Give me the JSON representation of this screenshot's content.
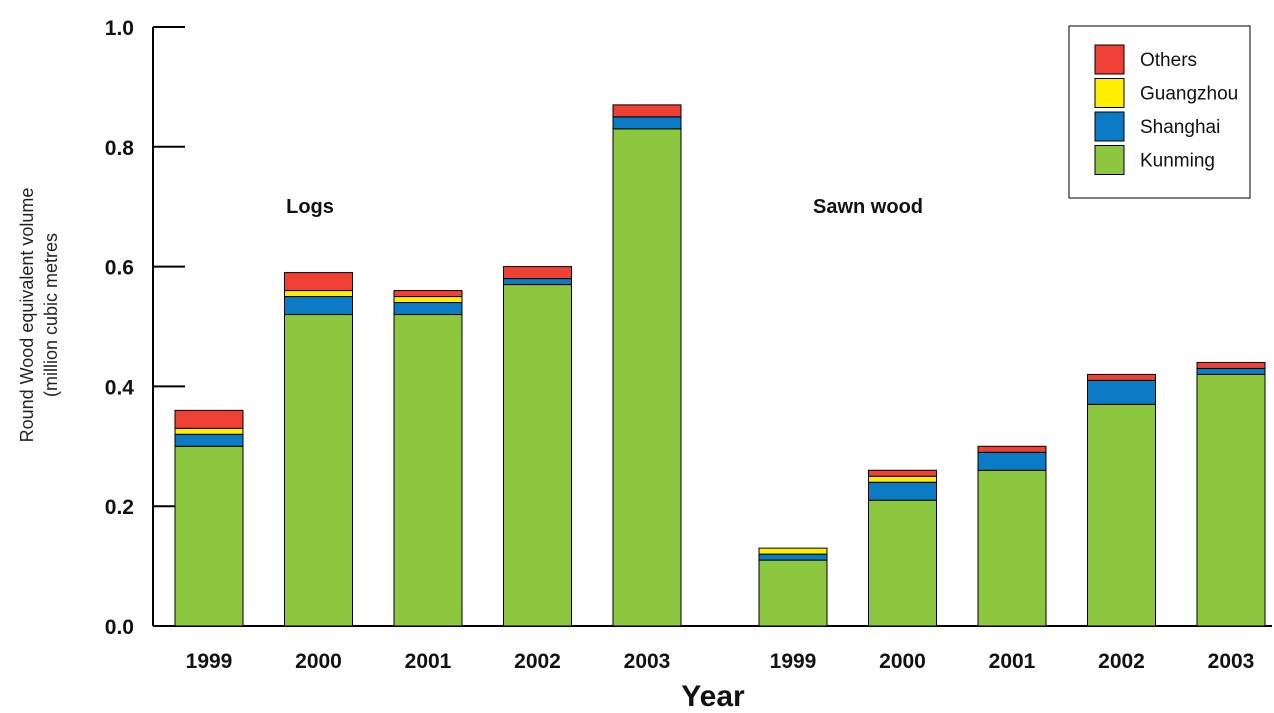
{
  "chart_data": {
    "type": "bar",
    "stacked": true,
    "xlabel": "Year",
    "ylabel_lines": [
      "Round Wood equivalent volume",
      "(million cubic metres"
    ],
    "ylim": [
      0,
      1.0
    ],
    "yticks": [
      "0.0",
      "0.2",
      "0.4",
      "0.6",
      "0.8",
      "1.0"
    ],
    "ytick_values": [
      0,
      0.2,
      0.4,
      0.6,
      0.8,
      1.0
    ],
    "grid": false,
    "legend_position": "top-right",
    "groups": [
      {
        "label": "Logs",
        "categories": [
          "1999",
          "2000",
          "2001",
          "2002",
          "2003"
        ],
        "series": [
          {
            "name": "Kunming",
            "values": [
              0.3,
              0.52,
              0.52,
              0.57,
              0.83
            ]
          },
          {
            "name": "Shanghai",
            "values": [
              0.02,
              0.03,
              0.02,
              0.01,
              0.02
            ]
          },
          {
            "name": "Guangzhou",
            "values": [
              0.01,
              0.01,
              0.01,
              0.0,
              0.0
            ]
          },
          {
            "name": "Others",
            "values": [
              0.03,
              0.03,
              0.01,
              0.02,
              0.02
            ]
          }
        ]
      },
      {
        "label": "Sawn wood",
        "categories": [
          "1999",
          "2000",
          "2001",
          "2002",
          "2003"
        ],
        "series": [
          {
            "name": "Kunming",
            "values": [
              0.11,
              0.21,
              0.26,
              0.37,
              0.42
            ]
          },
          {
            "name": "Shanghai",
            "values": [
              0.01,
              0.03,
              0.03,
              0.04,
              0.01
            ]
          },
          {
            "name": "Guangzhou",
            "values": [
              0.01,
              0.01,
              0.0,
              0.0,
              0.0
            ]
          },
          {
            "name": "Others",
            "values": [
              0.0,
              0.01,
              0.01,
              0.01,
              0.01
            ]
          }
        ]
      }
    ],
    "legend": [
      {
        "name": "Others",
        "color": "#EE4035"
      },
      {
        "name": "Guangzhou",
        "color": "#FFEE00"
      },
      {
        "name": "Shanghai",
        "color": "#0A7BC4"
      },
      {
        "name": "Kunming",
        "color": "#8DC63F"
      }
    ],
    "colors": {
      "Kunming": "#8DC63F",
      "Shanghai": "#0A7BC4",
      "Guangzhou": "#FFEE00",
      "Others": "#EE4035"
    }
  }
}
